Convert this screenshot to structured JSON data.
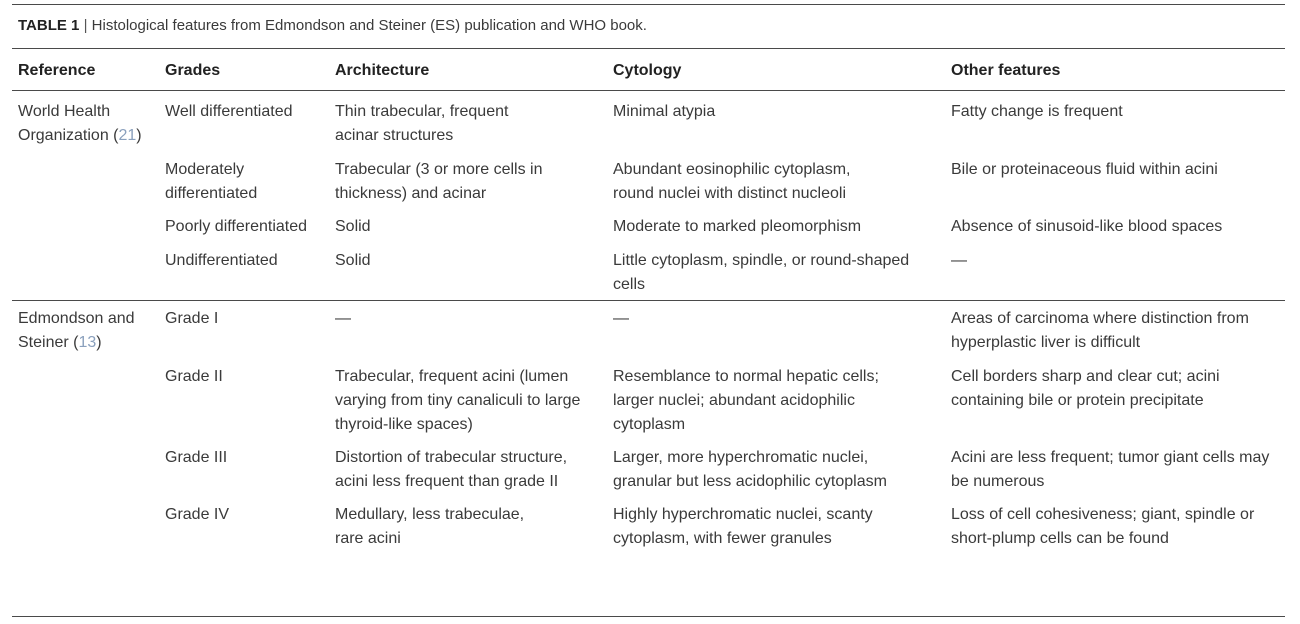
{
  "caption": {
    "label": "TABLE 1",
    "separator": "|",
    "text": "Histological features from Edmondson and Steiner (ES) publication and WHO book."
  },
  "headers": [
    "Reference",
    "Grades",
    "Architecture",
    "Cytology",
    "Other features"
  ],
  "groups": [
    {
      "reference": "World Health Organization",
      "citation": "21",
      "rows": [
        {
          "grade": "Well differentiated",
          "architecture": "Thin trabecular, frequent acinar structures",
          "cytology": "Minimal atypia",
          "other": "Fatty change is frequent"
        },
        {
          "grade": "Moderately differentiated",
          "architecture": "Trabecular (3 or more cells in thickness) and acinar",
          "cytology": "Abundant eosinophilic cytoplasm, round nuclei with distinct nucleoli",
          "other": "Bile or proteinaceous fluid within acini"
        },
        {
          "grade": "Poorly differentiated",
          "architecture": "Solid",
          "cytology": "Moderate to marked pleomorphism",
          "other": "Absence of sinusoid-like blood spaces"
        },
        {
          "grade": "Undifferentiated",
          "architecture": "Solid",
          "cytology": "Little cytoplasm, spindle, or round-shaped cells",
          "other": "—"
        }
      ]
    },
    {
      "reference": "Edmondson and Steiner",
      "citation": "13",
      "rows": [
        {
          "grade": "Grade I",
          "architecture": "—",
          "cytology": "—",
          "other": "Areas of carcinoma where distinction from hyperplastic liver is difficult"
        },
        {
          "grade": "Grade II",
          "architecture": "Trabecular, frequent acini (lumen varying from tiny canaliculi to large thyroid-like spaces)",
          "cytology": "Resemblance to normal hepatic cells; larger nuclei; abundant acidophilic cytoplasm",
          "other": "Cell borders sharp and clear cut; acini containing bile or protein precipitate"
        },
        {
          "grade": "Grade III",
          "architecture": "Distortion of trabecular structure, acini less frequent than grade II",
          "cytology": "Larger, more hyperchromatic nuclei, granular but less acidophilic cytoplasm",
          "other": "Acini are less frequent; tumor giant cells may be numerous"
        },
        {
          "grade": "Grade IV",
          "architecture": "Medullary, less trabeculae, rare acini",
          "cytology": "Highly hyperchromatic nuclei, scanty cytoplasm, with fewer granules",
          "other": "Loss of cell cohesiveness; giant, spindle or short-plump cells can be found"
        }
      ]
    }
  ]
}
